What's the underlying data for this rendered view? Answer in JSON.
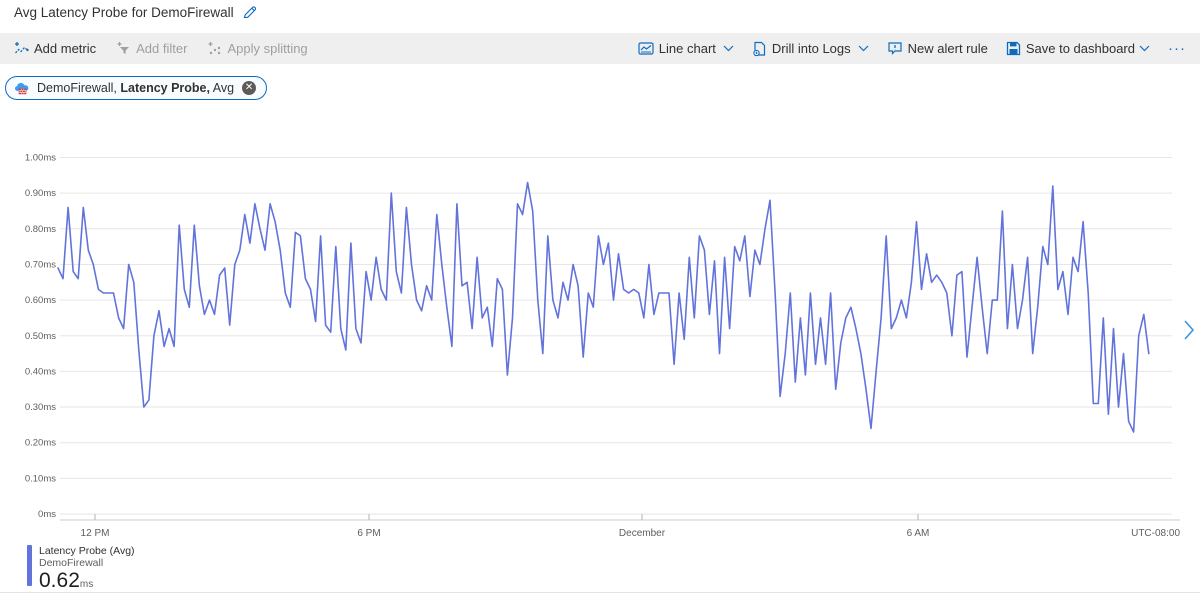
{
  "title": "Avg Latency Probe for DemoFirewall",
  "toolbar": {
    "add_metric": "Add metric",
    "add_filter": "Add filter",
    "apply_splitting": "Apply splitting",
    "line_chart": "Line chart",
    "drill_into_logs": "Drill into Logs",
    "new_alert_rule": "New alert rule",
    "save_to_dashboard": "Save to dashboard",
    "more": "···"
  },
  "metric_pill": {
    "resource": "DemoFirewall,",
    "metric": "Latency Probe,",
    "aggregation": "Avg",
    "close_icon": "✕"
  },
  "chart_data": {
    "type": "line",
    "title": "Avg Latency Probe for DemoFirewall",
    "unit": "ms",
    "ylim": [
      0,
      1.0
    ],
    "grid": true,
    "line_color": "#6273db",
    "y_ticks": [
      "1.00ms",
      "0.90ms",
      "0.80ms",
      "0.70ms",
      "0.60ms",
      "0.50ms",
      "0.40ms",
      "0.30ms",
      "0.20ms",
      "0.10ms",
      "0ms"
    ],
    "x_ticks": [
      "12 PM",
      "6 PM",
      "December",
      "6 AM"
    ],
    "timezone_label": "UTC-08:00",
    "series": [
      {
        "name": "Latency Probe (Avg)",
        "resource": "DemoFirewall",
        "aggregation": "Avg",
        "avg_display": "0.62",
        "values": [
          0.69,
          0.66,
          0.86,
          0.68,
          0.66,
          0.86,
          0.74,
          0.7,
          0.63,
          0.62,
          0.62,
          0.62,
          0.55,
          0.52,
          0.7,
          0.65,
          0.46,
          0.3,
          0.32,
          0.5,
          0.57,
          0.47,
          0.52,
          0.47,
          0.81,
          0.63,
          0.58,
          0.81,
          0.64,
          0.56,
          0.6,
          0.56,
          0.67,
          0.69,
          0.53,
          0.7,
          0.74,
          0.84,
          0.76,
          0.87,
          0.8,
          0.74,
          0.87,
          0.82,
          0.74,
          0.62,
          0.58,
          0.79,
          0.78,
          0.66,
          0.63,
          0.54,
          0.78,
          0.53,
          0.51,
          0.75,
          0.52,
          0.46,
          0.76,
          0.52,
          0.48,
          0.68,
          0.6,
          0.72,
          0.63,
          0.6,
          0.9,
          0.68,
          0.62,
          0.86,
          0.7,
          0.6,
          0.57,
          0.64,
          0.6,
          0.84,
          0.7,
          0.58,
          0.47,
          0.87,
          0.64,
          0.65,
          0.52,
          0.72,
          0.55,
          0.58,
          0.47,
          0.66,
          0.63,
          0.39,
          0.55,
          0.87,
          0.84,
          0.93,
          0.85,
          0.6,
          0.45,
          0.78,
          0.6,
          0.55,
          0.65,
          0.6,
          0.7,
          0.64,
          0.44,
          0.62,
          0.58,
          0.78,
          0.7,
          0.76,
          0.6,
          0.73,
          0.63,
          0.62,
          0.63,
          0.62,
          0.55,
          0.7,
          0.56,
          0.62,
          0.62,
          0.62,
          0.42,
          0.62,
          0.49,
          0.72,
          0.55,
          0.78,
          0.74,
          0.56,
          0.71,
          0.45,
          0.72,
          0.52,
          0.75,
          0.71,
          0.78,
          0.61,
          0.74,
          0.7,
          0.8,
          0.88,
          0.62,
          0.33,
          0.45,
          0.62,
          0.37,
          0.55,
          0.39,
          0.62,
          0.42,
          0.55,
          0.42,
          0.62,
          0.35,
          0.48,
          0.55,
          0.58,
          0.52,
          0.45,
          0.35,
          0.24,
          0.4,
          0.55,
          0.78,
          0.52,
          0.55,
          0.6,
          0.55,
          0.65,
          0.82,
          0.63,
          0.73,
          0.65,
          0.67,
          0.65,
          0.62,
          0.5,
          0.67,
          0.68,
          0.44,
          0.58,
          0.72,
          0.58,
          0.45,
          0.6,
          0.6,
          0.85,
          0.52,
          0.7,
          0.52,
          0.6,
          0.72,
          0.45,
          0.58,
          0.75,
          0.7,
          0.92,
          0.63,
          0.68,
          0.56,
          0.72,
          0.68,
          0.82,
          0.62,
          0.31,
          0.31,
          0.55,
          0.28,
          0.52,
          0.3,
          0.45,
          0.26,
          0.23,
          0.5,
          0.56,
          0.45
        ]
      }
    ]
  },
  "legend": {
    "name": "Latency Probe (Avg)",
    "resource": "DemoFirewall",
    "value": "0.62",
    "unit": "ms"
  },
  "pager": {
    "next_chevron": "›"
  }
}
